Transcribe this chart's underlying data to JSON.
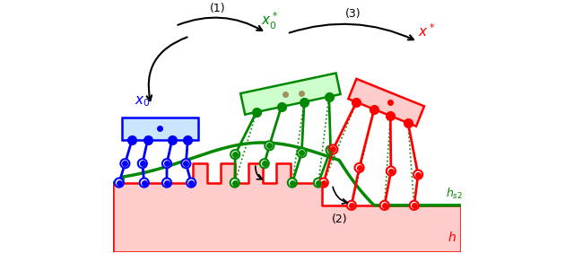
{
  "bg_color": "#ffffff",
  "terrain_fill": "#ffcccc",
  "terrain_edge": "#ff0000",
  "curve_color": "#008800",
  "blue_fill": "#cce5ff",
  "blue_edge": "#0000ff",
  "blue_color": "#0000ff",
  "green_fill": "#ccffcc",
  "green_edge": "#008800",
  "green_color": "#008800",
  "red_fill": "#ffcccc",
  "red_edge": "#ff0000",
  "red_color": "#ff0000",
  "tan_color": "#a09060",
  "black": "#000000",
  "figsize": [
    6.4,
    2.82
  ],
  "dpi": 100,
  "xlim": [
    0,
    10
  ],
  "ylim": [
    -2.0,
    5.2
  ]
}
